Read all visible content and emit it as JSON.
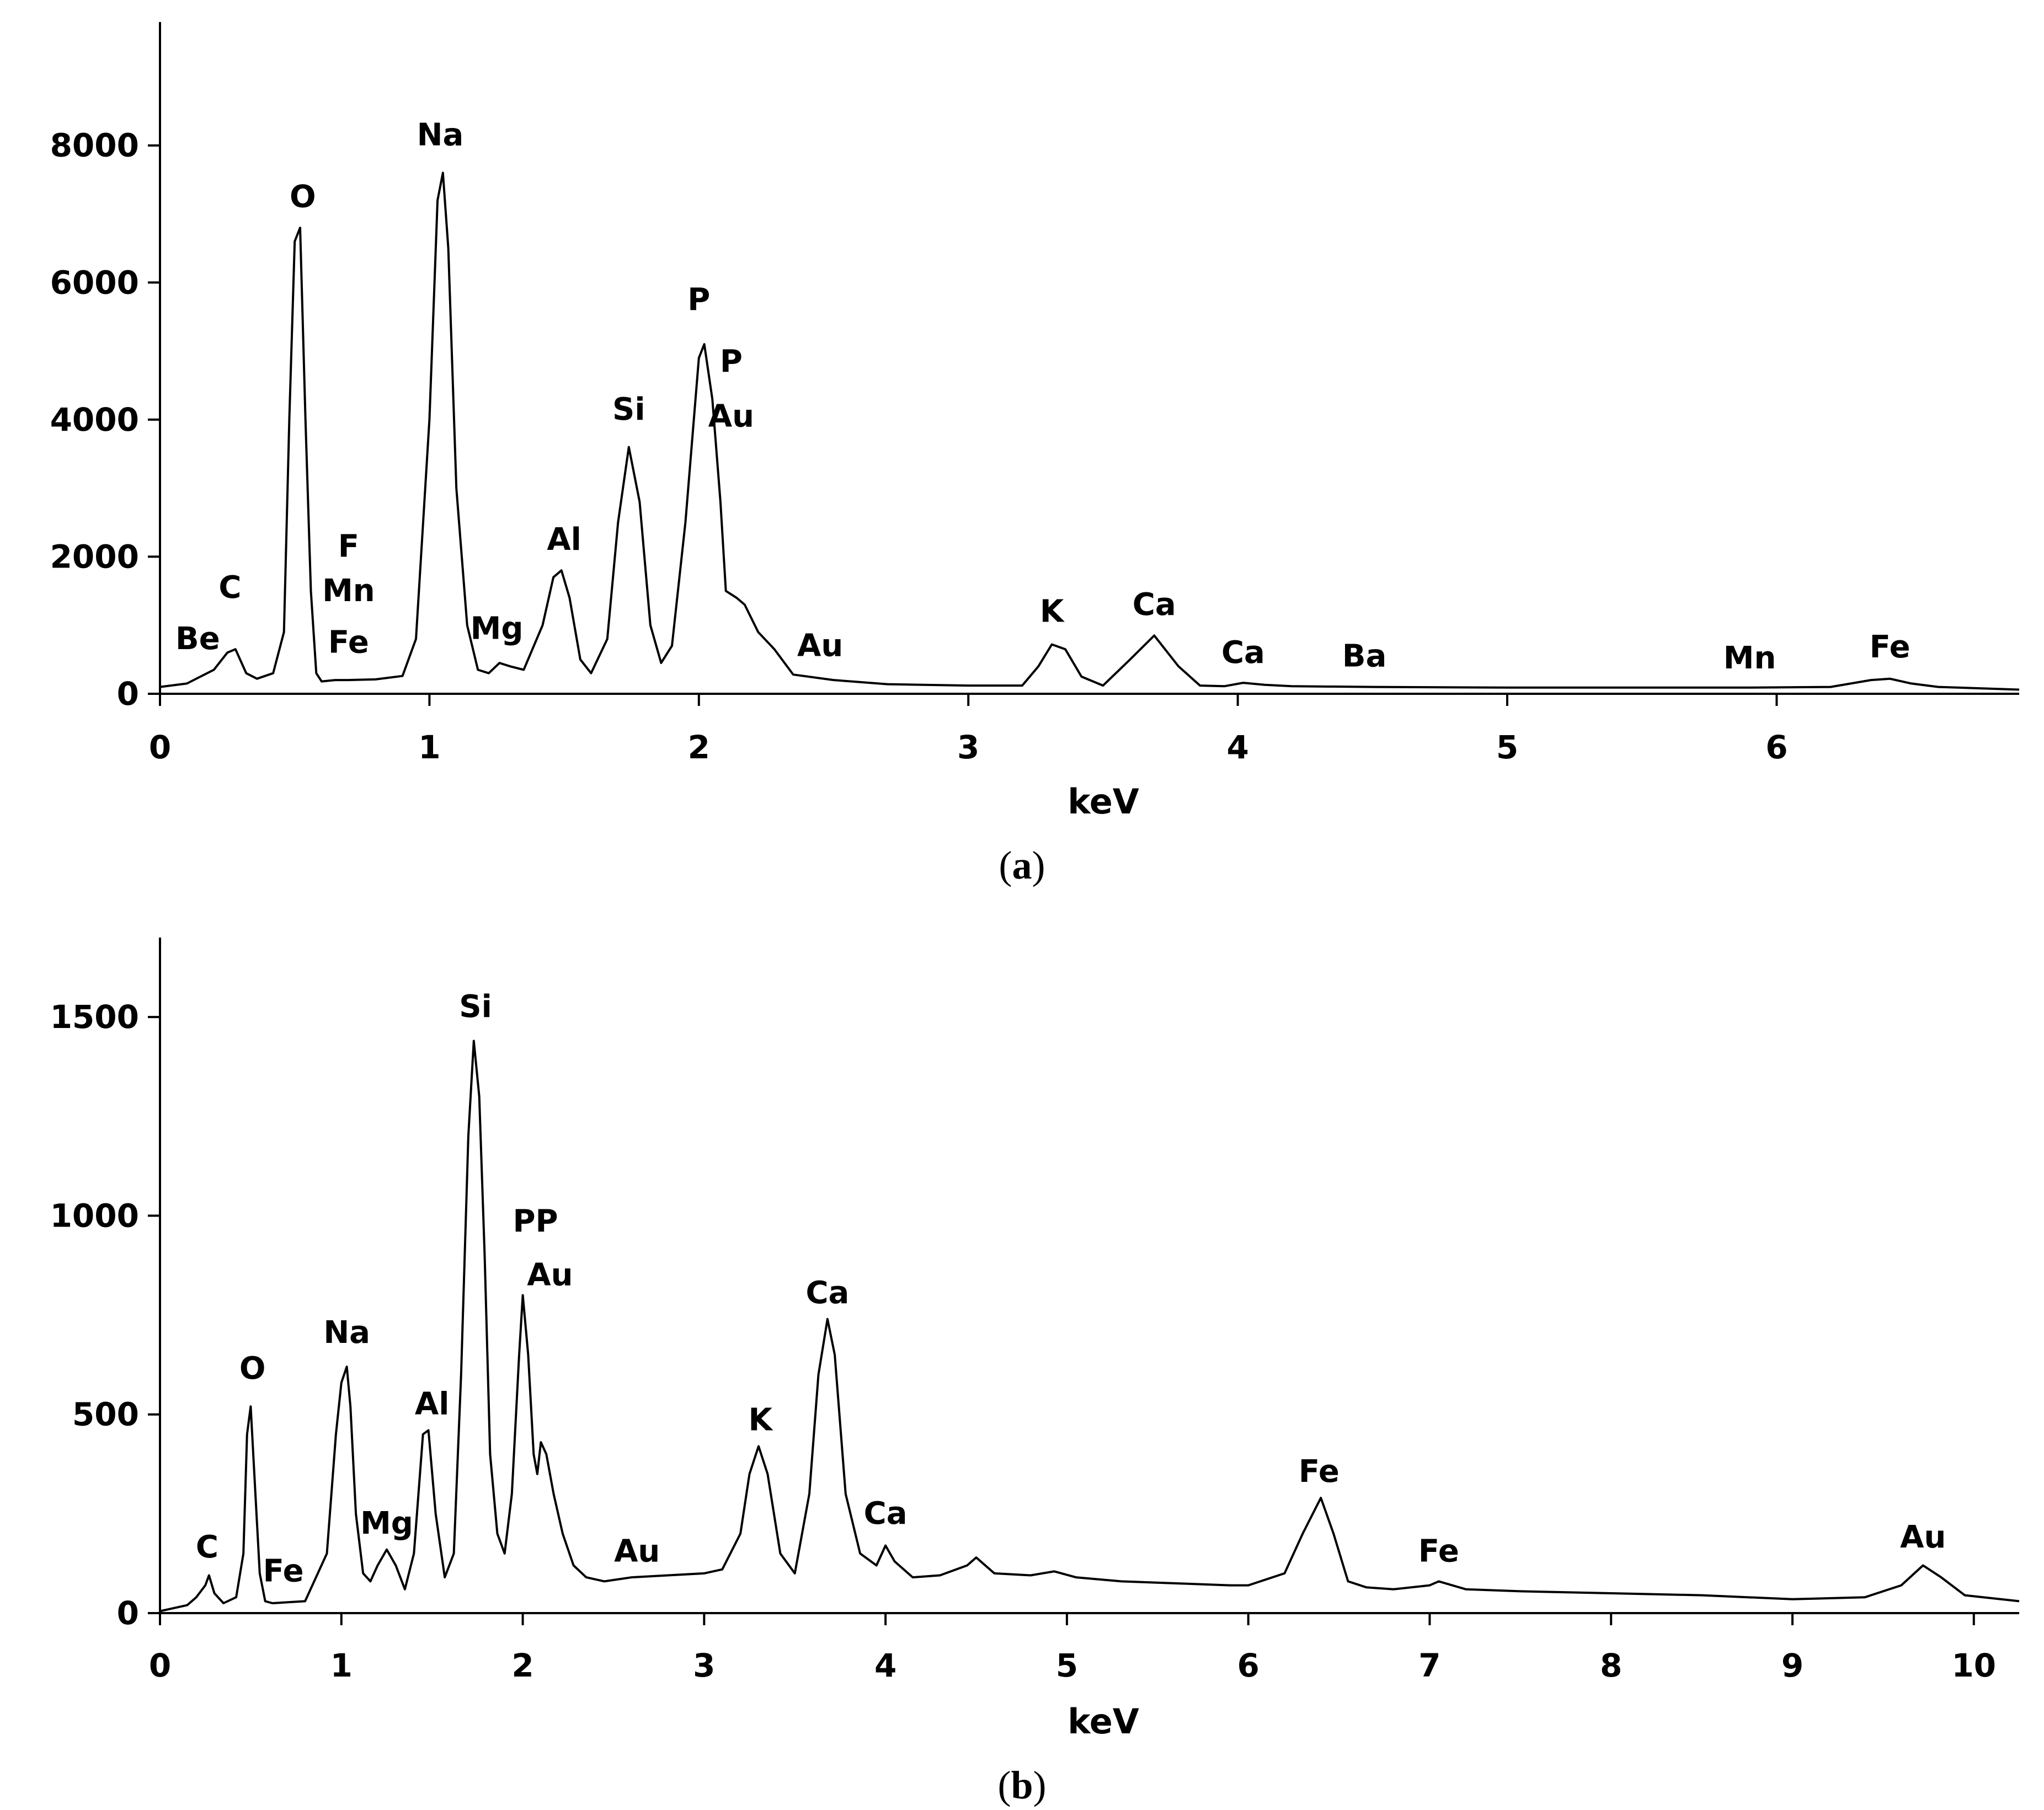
{
  "captions": {
    "a": "a",
    "b": "b"
  },
  "chart_data": [
    {
      "panel": "a",
      "type": "line",
      "xlabel": "keV",
      "ylabel": "",
      "xlim": [
        0,
        6.9
      ],
      "ylim": [
        0,
        9800
      ],
      "xticks": [
        0,
        1,
        2,
        3,
        4,
        5,
        6
      ],
      "yticks": [
        0,
        2000,
        4000,
        6000,
        8000
      ],
      "grid": false,
      "series": [
        {
          "x": [
            0,
            0.1,
            0.15,
            0.2,
            0.25,
            0.28,
            0.32,
            0.36,
            0.42,
            0.46,
            0.48,
            0.5,
            0.52,
            0.54,
            0.56,
            0.58,
            0.6,
            0.65,
            0.7,
            0.8,
            0.9,
            0.95,
            1.0,
            1.03,
            1.05,
            1.07,
            1.1,
            1.14,
            1.18,
            1.22,
            1.26,
            1.3,
            1.35,
            1.42,
            1.46,
            1.49,
            1.52,
            1.56,
            1.6,
            1.66,
            1.7,
            1.74,
            1.78,
            1.82,
            1.86,
            1.9,
            1.95,
            2.0,
            2.02,
            2.05,
            2.08,
            2.1,
            2.14,
            2.17,
            2.22,
            2.28,
            2.35,
            2.5,
            2.7,
            3.0,
            3.2,
            3.26,
            3.31,
            3.36,
            3.42,
            3.5,
            3.6,
            3.69,
            3.78,
            3.86,
            3.95,
            4.02,
            4.1,
            4.2,
            4.5,
            5.0,
            5.5,
            5.9,
            6.2,
            6.35,
            6.42,
            6.5,
            6.6,
            6.9
          ],
          "y": [
            100,
            150,
            250,
            350,
            600,
            650,
            300,
            220,
            300,
            900,
            4000,
            6600,
            6800,
            4000,
            1500,
            300,
            180,
            200,
            200,
            210,
            260,
            800,
            4000,
            7200,
            7600,
            6500,
            3000,
            1000,
            350,
            300,
            450,
            400,
            350,
            1000,
            1700,
            1800,
            1400,
            500,
            300,
            800,
            2500,
            3600,
            2800,
            1000,
            450,
            700,
            2500,
            4900,
            5100,
            4300,
            2800,
            1500,
            1400,
            1300,
            900,
            650,
            280,
            200,
            140,
            120,
            120,
            400,
            720,
            650,
            250,
            120,
            500,
            850,
            400,
            120,
            110,
            160,
            130,
            110,
            100,
            90,
            90,
            90,
            100,
            200,
            220,
            150,
            100,
            60
          ]
        }
      ],
      "annotations": [
        {
          "text": "Be",
          "x": 0.14,
          "y": 650
        },
        {
          "text": "C",
          "x": 0.26,
          "y": 1400
        },
        {
          "text": "O",
          "x": 0.53,
          "y": 7100
        },
        {
          "text": "F",
          "x": 0.7,
          "y": 2000
        },
        {
          "text": "Mn",
          "x": 0.7,
          "y": 1350
        },
        {
          "text": "Fe",
          "x": 0.7,
          "y": 600
        },
        {
          "text": "Na",
          "x": 1.04,
          "y": 8000
        },
        {
          "text": "Mg",
          "x": 1.25,
          "y": 800
        },
        {
          "text": "Al",
          "x": 1.5,
          "y": 2100
        },
        {
          "text": "Si",
          "x": 1.74,
          "y": 4000
        },
        {
          "text": "P",
          "x": 2.0,
          "y": 5600
        },
        {
          "text": "P",
          "x": 2.12,
          "y": 4700
        },
        {
          "text": "Au",
          "x": 2.12,
          "y": 3900
        },
        {
          "text": "Au",
          "x": 2.45,
          "y": 550
        },
        {
          "text": "K",
          "x": 3.31,
          "y": 1050
        },
        {
          "text": "Ca",
          "x": 3.69,
          "y": 1150
        },
        {
          "text": "Ca",
          "x": 4.02,
          "y": 450
        },
        {
          "text": "Ba",
          "x": 4.47,
          "y": 400
        },
        {
          "text": "Mn",
          "x": 5.9,
          "y": 370
        },
        {
          "text": "Fe",
          "x": 6.42,
          "y": 530
        }
      ]
    },
    {
      "panel": "b",
      "type": "line",
      "xlabel": "keV",
      "ylabel": "",
      "xlim": [
        0,
        10.25
      ],
      "ylim": [
        0,
        1700
      ],
      "xticks": [
        0,
        1,
        2,
        3,
        4,
        5,
        6,
        7,
        8,
        9,
        10
      ],
      "yticks": [
        0,
        500,
        1000,
        1500
      ],
      "grid": false,
      "series": [
        {
          "x": [
            0,
            0.15,
            0.2,
            0.25,
            0.27,
            0.3,
            0.35,
            0.42,
            0.46,
            0.48,
            0.5,
            0.52,
            0.55,
            0.58,
            0.62,
            0.8,
            0.92,
            0.97,
            1.0,
            1.03,
            1.05,
            1.08,
            1.12,
            1.16,
            1.2,
            1.25,
            1.3,
            1.35,
            1.4,
            1.45,
            1.48,
            1.52,
            1.57,
            1.62,
            1.66,
            1.7,
            1.73,
            1.76,
            1.79,
            1.82,
            1.86,
            1.9,
            1.94,
            1.98,
            2.0,
            2.03,
            2.06,
            2.08,
            2.1,
            2.13,
            2.17,
            2.22,
            2.28,
            2.35,
            2.45,
            2.6,
            2.8,
            3.0,
            3.1,
            3.2,
            3.25,
            3.3,
            3.35,
            3.42,
            3.5,
            3.58,
            3.63,
            3.68,
            3.72,
            3.78,
            3.86,
            3.95,
            4.0,
            4.05,
            4.15,
            4.3,
            4.45,
            4.5,
            4.6,
            4.8,
            4.93,
            5.05,
            5.3,
            5.6,
            5.9,
            6.0,
            6.2,
            6.3,
            6.4,
            6.47,
            6.55,
            6.65,
            6.8,
            7.0,
            7.05,
            7.2,
            7.5,
            8.0,
            8.5,
            9.0,
            9.4,
            9.6,
            9.72,
            9.82,
            9.95,
            10.25
          ],
          "y": [
            5,
            20,
            40,
            70,
            95,
            50,
            25,
            40,
            150,
            450,
            520,
            350,
            100,
            30,
            25,
            30,
            150,
            450,
            580,
            620,
            520,
            250,
            100,
            80,
            120,
            160,
            120,
            60,
            150,
            450,
            460,
            250,
            90,
            150,
            600,
            1200,
            1440,
            1300,
            900,
            400,
            200,
            150,
            300,
            650,
            800,
            650,
            400,
            350,
            430,
            400,
            300,
            200,
            120,
            90,
            80,
            90,
            95,
            100,
            110,
            200,
            350,
            420,
            350,
            150,
            100,
            300,
            600,
            740,
            650,
            300,
            150,
            120,
            170,
            130,
            90,
            95,
            120,
            140,
            100,
            95,
            105,
            90,
            80,
            75,
            70,
            70,
            100,
            200,
            290,
            200,
            80,
            65,
            60,
            70,
            80,
            60,
            55,
            50,
            45,
            35,
            40,
            70,
            120,
            90,
            45,
            30
          ]
        }
      ],
      "annotations": [
        {
          "text": "C",
          "x": 0.26,
          "y": 140
        },
        {
          "text": "O",
          "x": 0.51,
          "y": 590
        },
        {
          "text": "Fe",
          "x": 0.68,
          "y": 80
        },
        {
          "text": "Na",
          "x": 1.03,
          "y": 680
        },
        {
          "text": "Mg",
          "x": 1.25,
          "y": 200
        },
        {
          "text": "Al",
          "x": 1.5,
          "y": 500
        },
        {
          "text": "Si",
          "x": 1.74,
          "y": 1500
        },
        {
          "text": "PP",
          "x": 2.07,
          "y": 960
        },
        {
          "text": "Au",
          "x": 2.15,
          "y": 825
        },
        {
          "text": "Au",
          "x": 2.63,
          "y": 130
        },
        {
          "text": "K",
          "x": 3.31,
          "y": 460
        },
        {
          "text": "Ca",
          "x": 3.68,
          "y": 780
        },
        {
          "text": "Ca",
          "x": 4.0,
          "y": 225
        },
        {
          "text": "Fe",
          "x": 6.39,
          "y": 330
        },
        {
          "text": "Fe",
          "x": 7.05,
          "y": 130
        },
        {
          "text": "Au",
          "x": 9.72,
          "y": 165
        }
      ]
    }
  ]
}
